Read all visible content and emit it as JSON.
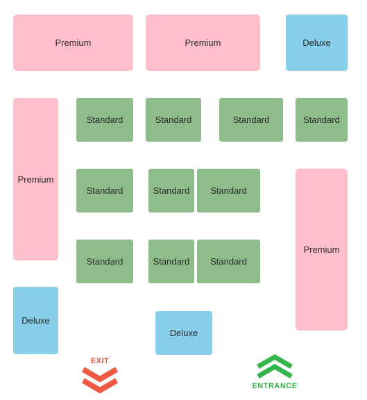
{
  "floor_plan": {
    "colors": {
      "premium": "#ffc0cb",
      "deluxe": "#87ceeb",
      "standard": "#8fbc8b",
      "exit": "#ee5a44",
      "entrance": "#33b54a"
    },
    "booths": [
      {
        "id": "p1",
        "label": "Premium",
        "tier": "premium"
      },
      {
        "id": "p2",
        "label": "Premium",
        "tier": "premium"
      },
      {
        "id": "d1",
        "label": "Deluxe",
        "tier": "deluxe"
      },
      {
        "id": "p3",
        "label": "Premium",
        "tier": "premium"
      },
      {
        "id": "s1",
        "label": "Standard",
        "tier": "standard"
      },
      {
        "id": "s2",
        "label": "Standard",
        "tier": "standard"
      },
      {
        "id": "s3",
        "label": "Standard",
        "tier": "standard"
      },
      {
        "id": "s4",
        "label": "Standard",
        "tier": "standard"
      },
      {
        "id": "s5",
        "label": "Standard",
        "tier": "standard"
      },
      {
        "id": "s6",
        "label": "Standard",
        "tier": "standard"
      },
      {
        "id": "s7",
        "label": "Standard",
        "tier": "standard"
      },
      {
        "id": "p4",
        "label": "Premium",
        "tier": "premium"
      },
      {
        "id": "s8",
        "label": "Standard",
        "tier": "standard"
      },
      {
        "id": "s9",
        "label": "Standard",
        "tier": "standard"
      },
      {
        "id": "s10",
        "label": "Standard",
        "tier": "standard"
      },
      {
        "id": "d2",
        "label": "Deluxe",
        "tier": "deluxe"
      },
      {
        "id": "d3",
        "label": "Deluxe",
        "tier": "deluxe"
      }
    ],
    "exit": {
      "label": "EXIT",
      "icon": "double-chevron-down-icon"
    },
    "entrance": {
      "label": "ENTRANCE",
      "icon": "double-chevron-up-icon"
    }
  }
}
